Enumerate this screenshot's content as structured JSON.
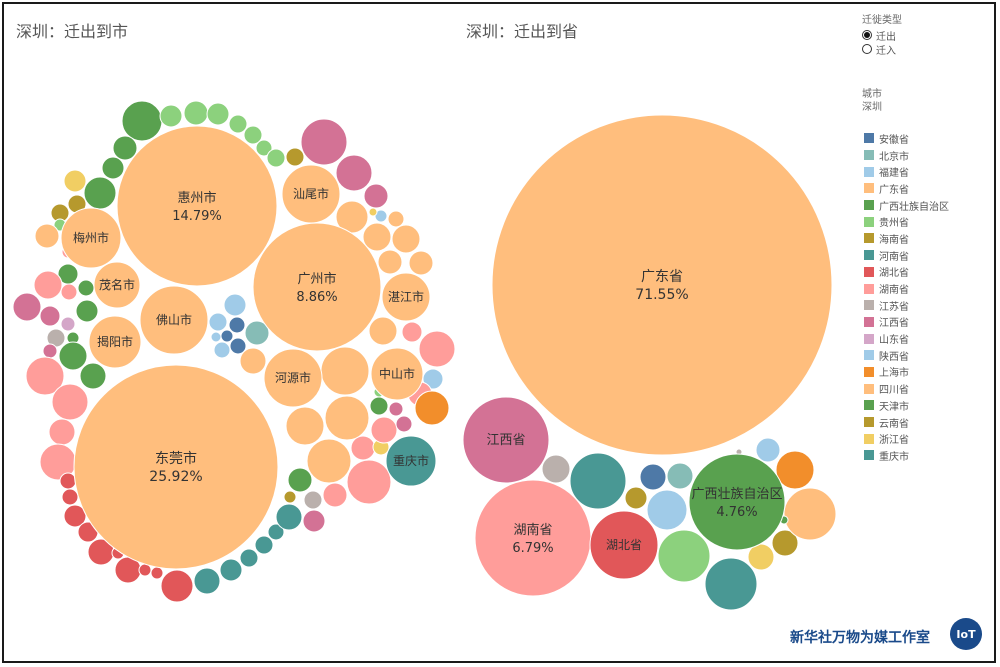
{
  "header": {
    "left_title": "深圳：迁出到市",
    "right_title": "深圳：迁出到省"
  },
  "controls": {
    "migration_type_label": "迁徙类型",
    "options": [
      "迁出",
      "迁入"
    ],
    "selected": "迁出",
    "city_label": "城市",
    "city_value": "深圳"
  },
  "legend": [
    {
      "label": "安徽省",
      "color": "#4e79a7"
    },
    {
      "label": "北京市",
      "color": "#86bcb6"
    },
    {
      "label": "福建省",
      "color": "#a0cbe8"
    },
    {
      "label": "广东省",
      "color": "#ffbe7d"
    },
    {
      "label": "广西壮族自治区",
      "color": "#59a14f"
    },
    {
      "label": "贵州省",
      "color": "#8cd17d"
    },
    {
      "label": "海南省",
      "color": "#b6992d"
    },
    {
      "label": "河南省",
      "color": "#499894"
    },
    {
      "label": "湖北省",
      "color": "#e15759"
    },
    {
      "label": "湖南省",
      "color": "#ff9d9a"
    },
    {
      "label": "江苏省",
      "color": "#bab0ac"
    },
    {
      "label": "江西省",
      "color": "#d37295"
    },
    {
      "label": "山东省",
      "color": "#d4a6c8"
    },
    {
      "label": "陕西省",
      "color": "#a0cbe8"
    },
    {
      "label": "上海市",
      "color": "#f28e2b"
    },
    {
      "label": "四川省",
      "color": "#ffbe7d"
    },
    {
      "label": "天津市",
      "color": "#59a14f"
    },
    {
      "label": "云南省",
      "color": "#b6992d"
    },
    {
      "label": "浙江省",
      "color": "#f1ce63"
    },
    {
      "label": "重庆市",
      "color": "#499894"
    }
  ],
  "brand": {
    "text": "新华社万物为媒工作室",
    "logo_text": "IoT"
  },
  "chart_data": [
    {
      "type": "bubble",
      "title": "深圳：迁出到市",
      "labeled": [
        {
          "name": "东莞市",
          "value": 25.92,
          "color": "#ffbe7d",
          "label": "东莞市",
          "pct": "25.92%"
        },
        {
          "name": "惠州市",
          "value": 14.79,
          "color": "#ffbe7d",
          "label": "惠州市",
          "pct": "14.79%"
        },
        {
          "name": "广州市",
          "value": 8.86,
          "color": "#ffbe7d",
          "label": "广州市",
          "pct": "8.86%"
        },
        {
          "name": "佛山市",
          "color": "#ffbe7d",
          "label": "佛山市"
        },
        {
          "name": "梅州市",
          "color": "#ffbe7d",
          "label": "梅州市"
        },
        {
          "name": "汕尾市",
          "color": "#ffbe7d",
          "label": "汕尾市"
        },
        {
          "name": "茂名市",
          "color": "#ffbe7d",
          "label": "茂名市"
        },
        {
          "name": "揭阳市",
          "color": "#ffbe7d",
          "label": "揭阳市"
        },
        {
          "name": "湛江市",
          "color": "#ffbe7d",
          "label": "湛江市"
        },
        {
          "name": "河源市",
          "color": "#ffbe7d",
          "label": "河源市"
        },
        {
          "name": "中山市",
          "color": "#ffbe7d",
          "label": "中山市"
        },
        {
          "name": "重庆市",
          "color": "#499894",
          "label": "重庆市"
        }
      ]
    },
    {
      "type": "bubble",
      "title": "深圳：迁出到省",
      "labeled": [
        {
          "name": "广东省",
          "value": 71.55,
          "color": "#ffbe7d",
          "label": "广东省",
          "pct": "71.55%"
        },
        {
          "name": "湖南省",
          "value": 6.79,
          "color": "#ff9d9a",
          "label": "湖南省",
          "pct": "6.79%"
        },
        {
          "name": "广西壮族自治区",
          "value": 4.76,
          "color": "#59a14f",
          "label": "广西壮族自治区",
          "pct": "4.76%"
        },
        {
          "name": "江西省",
          "color": "#d37295",
          "label": "江西省"
        },
        {
          "name": "湖北省",
          "color": "#e15759",
          "label": "湖北省"
        }
      ]
    }
  ]
}
